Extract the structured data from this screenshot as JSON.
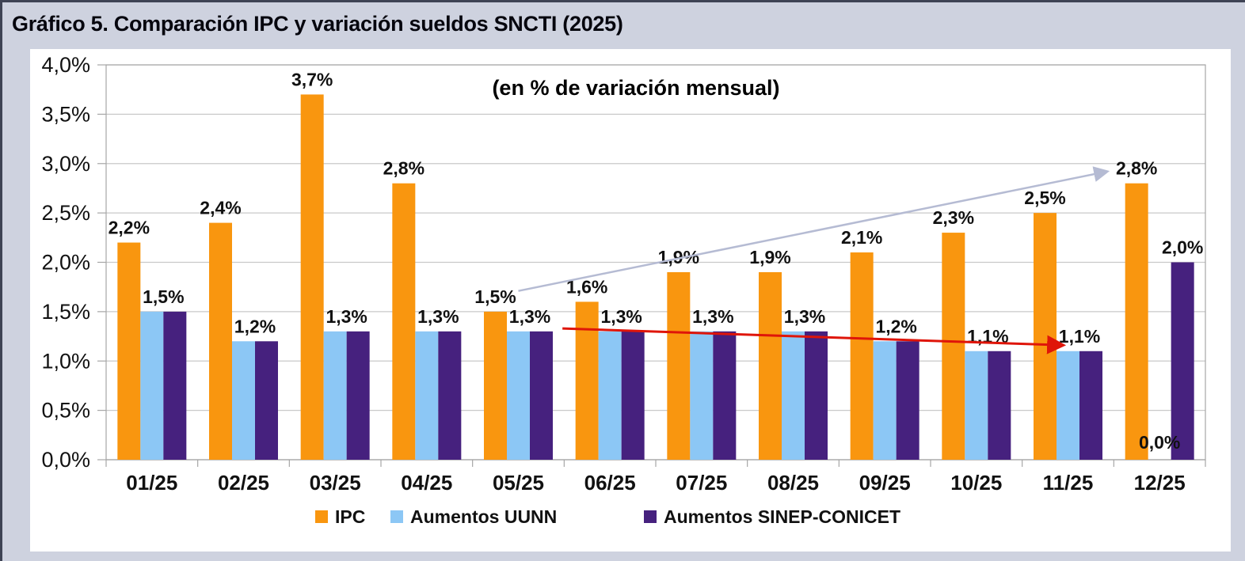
{
  "page": {
    "background": "#CED2DF",
    "border_color": "#3E4354"
  },
  "chart_data": {
    "type": "bar",
    "title": "Gráfico 5. Comparación IPC y variación sueldos SNCTI (2025)",
    "subtitle": "(en % de variación mensual)",
    "categories": [
      "01/25",
      "02/25",
      "03/25",
      "04/25",
      "05/25",
      "06/25",
      "07/25",
      "08/25",
      "09/25",
      "10/25",
      "11/25",
      "12/25"
    ],
    "series": [
      {
        "name": "IPC",
        "color": "#F9960F",
        "values": [
          2.2,
          2.4,
          3.7,
          2.8,
          1.5,
          1.6,
          1.9,
          1.9,
          2.1,
          2.3,
          2.5,
          2.8
        ]
      },
      {
        "name": "Aumentos UUNN",
        "color": "#8CC7F5",
        "values": [
          1.5,
          1.2,
          1.3,
          1.3,
          1.3,
          1.3,
          1.3,
          1.3,
          1.2,
          1.1,
          1.1,
          0.0
        ]
      },
      {
        "name": "Aumentos SINEP-CONICET",
        "color": "#46217E",
        "values": [
          1.5,
          1.2,
          1.3,
          1.3,
          1.3,
          1.3,
          1.3,
          1.3,
          1.2,
          1.1,
          1.1,
          2.0
        ]
      }
    ],
    "value_labels": {
      "ipc": [
        "2,2%",
        "2,4%",
        "3,7%",
        "2,8%",
        "1,5%",
        "1,6%",
        "1,9%",
        "1,9%",
        "2,1%",
        "2,3%",
        "2,5%",
        "2,8%"
      ],
      "aumentos_pair": [
        "1,5%",
        "1,2%",
        "1,3%",
        "1,3%",
        "1,3%",
        "1,3%",
        "1,3%",
        "1,3%",
        "1,2%",
        "1,1%",
        "1,1%"
      ],
      "dec_uunn": "0,0%",
      "dec_sinep": "2,0%"
    },
    "y_axis": {
      "ticks": [
        "4,0%",
        "3,5%",
        "3,0%",
        "2,5%",
        "2,0%",
        "1,5%",
        "1,0%",
        "0,5%",
        "0,0%"
      ],
      "min": 0,
      "max": 4,
      "step": 0.5
    },
    "grid": true,
    "legend_position": "bottom",
    "annotations": [
      {
        "name": "ipc-trend-arrow",
        "color": "#B5BBD3",
        "width": 2.5,
        "from": {
          "month_index": 4,
          "pct": 1.71,
          "dx": 0
        },
        "to": {
          "month_index": 11,
          "pct": 2.92,
          "dx": -66
        }
      },
      {
        "name": "aumentos-trend-arrow",
        "color": "#DF1509",
        "width": 3,
        "from": {
          "month_index": 5,
          "pct": 1.33,
          "dx": -60
        },
        "to": {
          "month_index": 10,
          "pct": 1.16,
          "dx": -6
        }
      }
    ]
  }
}
